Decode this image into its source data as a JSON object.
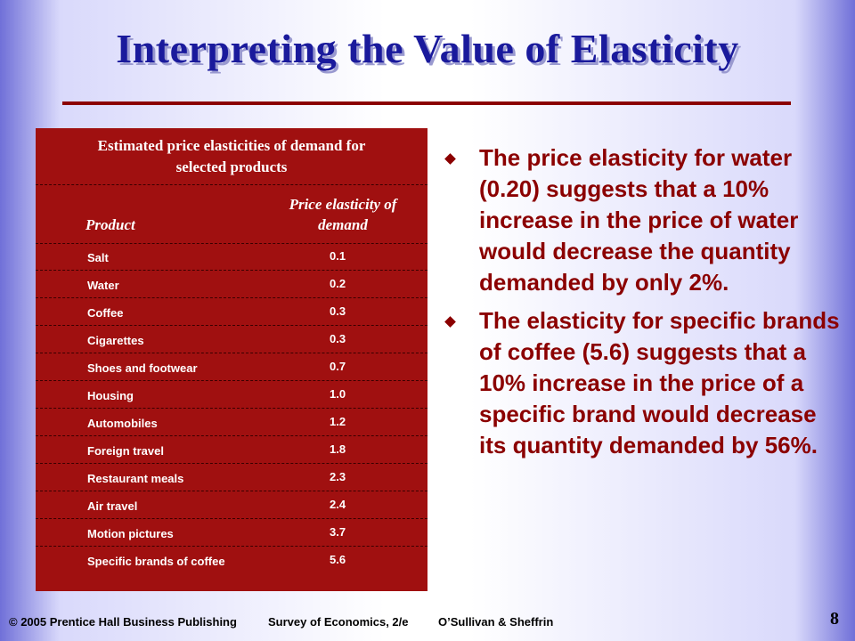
{
  "slide": {
    "title": "Interpreting the Value of Elasticity"
  },
  "table": {
    "caption": "Estimated price elasticities of demand for selected products",
    "header_product": "Product",
    "header_elasticity": "Price elasticity of demand",
    "rows": [
      {
        "product": "Salt",
        "value": "0.1"
      },
      {
        "product": "Water",
        "value": "0.2"
      },
      {
        "product": "Coffee",
        "value": "0.3"
      },
      {
        "product": "Cigarettes",
        "value": "0.3"
      },
      {
        "product": "Shoes and footwear",
        "value": "0.7"
      },
      {
        "product": "Housing",
        "value": "1.0"
      },
      {
        "product": "Automobiles",
        "value": "1.2"
      },
      {
        "product": "Foreign travel",
        "value": "1.8"
      },
      {
        "product": "Restaurant meals",
        "value": "2.3"
      },
      {
        "product": "Air travel",
        "value": "2.4"
      },
      {
        "product": "Motion pictures",
        "value": "3.7"
      },
      {
        "product": "Specific brands of coffee",
        "value": "5.6"
      }
    ]
  },
  "bullets": [
    "The price elasticity for water (0.20) suggests that a 10% increase in the price of water would decrease the quantity demanded by only 2%.",
    "The elasticity for specific brands of coffee (5.6) suggests that a 10% increase in the price of a specific brand would decrease its quantity demanded by 56%."
  ],
  "footer": {
    "copyright": "© 2005 Prentice Hall Business Publishing",
    "book": "Survey of Economics, 2/e",
    "authors": "O’Sullivan & Sheffrin",
    "page_number": "8"
  }
}
